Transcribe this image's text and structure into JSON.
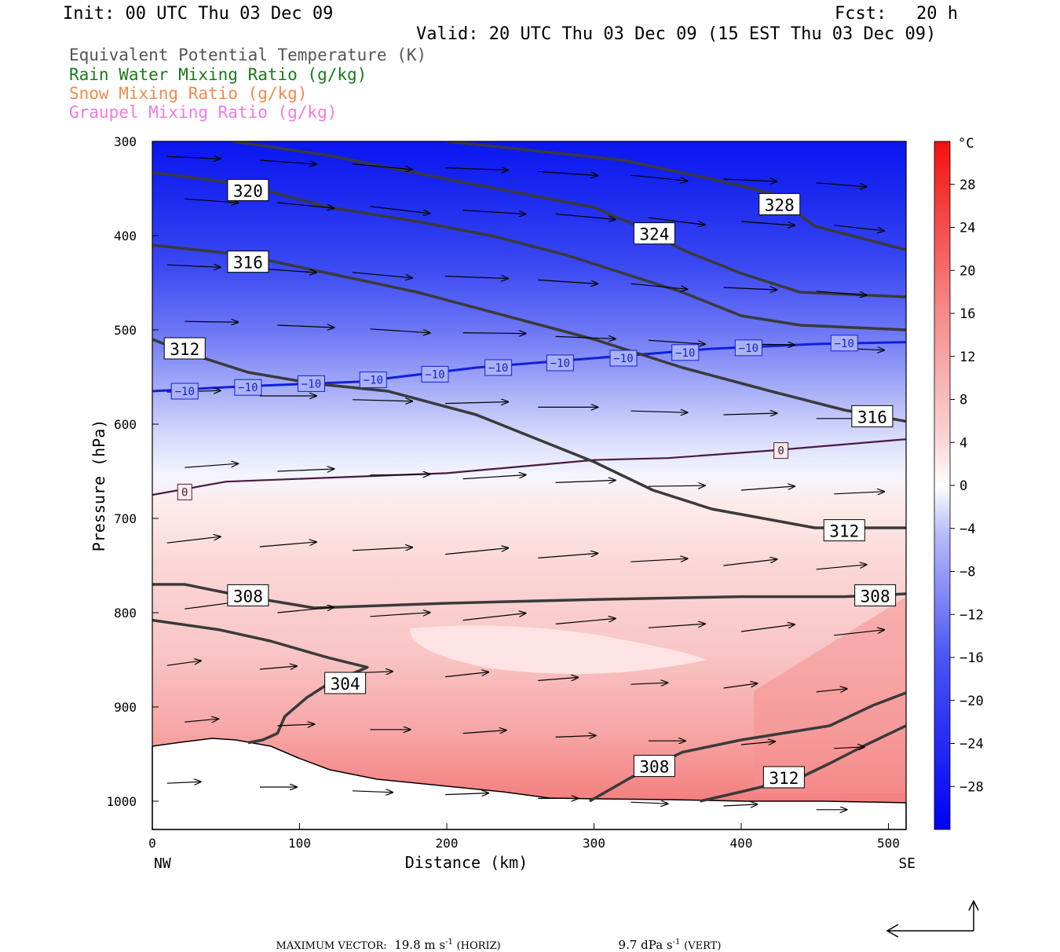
{
  "header": {
    "init": "Init: 00 UTC Thu 03 Dec 09",
    "fcst_label": "Fcst:",
    "fcst_value": "20 h",
    "valid": "Valid: 20 UTC Thu 03 Dec 09 (15 EST Thu 03 Dec 09)"
  },
  "fields": [
    {
      "label": "Equivalent Potential Temperature (K)",
      "color": "#555555"
    },
    {
      "label": "Rain Water Mixing Ratio (g/kg)",
      "color": "#1a7a1a"
    },
    {
      "label": "Snow Mixing Ratio (g/kg)",
      "color": "#f08a4b"
    },
    {
      "label": "Graupel Mixing Ratio (g/kg)",
      "color": "#f07ae0"
    }
  ],
  "footer": {
    "max_vector_label": "MAXIMUM VECTOR:",
    "horiz": "19.8 m s",
    "horiz_exp": "-1",
    "horiz_tag": "(HORIZ)",
    "vert": "9.7 dPa s",
    "vert_exp": "-1",
    "vert_tag": "(VERT)"
  },
  "chart_data": {
    "type": "cross-section contour",
    "xlabel": "Distance (km)",
    "ylabel": "Pressure (hPa)",
    "x_ticks": [
      0,
      100,
      200,
      300,
      400,
      500
    ],
    "y_ticks": [
      300,
      400,
      500,
      600,
      700,
      800,
      900,
      1000
    ],
    "xlim": [
      0,
      512
    ],
    "ylim": [
      1030,
      300
    ],
    "x_end_labels": {
      "left": "NW",
      "right": "SE"
    },
    "colorbar": {
      "unit": "°C",
      "ticks": [
        28,
        24,
        20,
        16,
        12,
        8,
        4,
        0,
        -4,
        -8,
        -12,
        -16,
        -20,
        -24,
        -28
      ],
      "range": [
        -32,
        32
      ]
    },
    "temperature_isotherms": [
      {
        "value": -10,
        "points": [
          [
            0,
            565
          ],
          [
            60,
            560
          ],
          [
            140,
            555
          ],
          [
            220,
            540
          ],
          [
            300,
            530
          ],
          [
            380,
            520
          ],
          [
            450,
            515
          ],
          [
            512,
            513
          ]
        ],
        "labels": [
          [
            22,
            565
          ],
          [
            65,
            561
          ],
          [
            108,
            557
          ],
          [
            150,
            553
          ],
          [
            192,
            547
          ],
          [
            235,
            540
          ],
          [
            277,
            535
          ],
          [
            320,
            530
          ],
          [
            362,
            524
          ],
          [
            405,
            519
          ],
          [
            470,
            514
          ]
        ]
      },
      {
        "value": 0,
        "points": [
          [
            0,
            675
          ],
          [
            50,
            661
          ],
          [
            150,
            655
          ],
          [
            200,
            652
          ],
          [
            250,
            645
          ],
          [
            300,
            638
          ],
          [
            350,
            636
          ],
          [
            420,
            628
          ],
          [
            512,
            616
          ]
        ],
        "labels": [
          [
            22,
            672
          ],
          [
            427,
            628
          ]
        ]
      }
    ],
    "theta_e_contours": [
      {
        "value": 304,
        "points": [
          [
            0,
            808
          ],
          [
            45,
            818
          ],
          [
            80,
            830
          ],
          [
            120,
            848
          ],
          [
            146,
            858
          ],
          [
            120,
            875
          ],
          [
            105,
            890
          ],
          [
            90,
            910
          ],
          [
            85,
            928
          ],
          [
            75,
            935
          ],
          [
            65,
            938
          ]
        ],
        "labels": [
          [
            131,
            875
          ]
        ]
      },
      {
        "value": 308,
        "points": [
          [
            0,
            770
          ],
          [
            22,
            770
          ],
          [
            60,
            782
          ],
          [
            110,
            795
          ],
          [
            200,
            790
          ],
          [
            300,
            786
          ],
          [
            400,
            783
          ],
          [
            470,
            783
          ],
          [
            512,
            780
          ]
        ],
        "labels": [
          [
            65,
            782
          ],
          [
            491,
            782
          ]
        ]
      },
      {
        "value": 308,
        "points": [
          [
            297,
            1000
          ],
          [
            325,
            975
          ],
          [
            360,
            948
          ],
          [
            400,
            935
          ],
          [
            460,
            920
          ],
          [
            490,
            898
          ],
          [
            512,
            885
          ]
        ],
        "labels": [
          [
            341,
            963
          ]
        ]
      },
      {
        "value": 312,
        "points": [
          [
            0,
            510
          ],
          [
            25,
            525
          ],
          [
            65,
            545
          ],
          [
            110,
            557
          ],
          [
            160,
            565
          ],
          [
            220,
            590
          ],
          [
            260,
            615
          ],
          [
            300,
            640
          ],
          [
            340,
            670
          ],
          [
            380,
            690
          ],
          [
            450,
            710
          ],
          [
            512,
            710
          ]
        ],
        "labels": [
          [
            22,
            520
          ],
          [
            470,
            713
          ]
        ]
      },
      {
        "value": 312,
        "points": [
          [
            372,
            1000
          ],
          [
            400,
            990
          ],
          [
            440,
            975
          ],
          [
            460,
            960
          ],
          [
            485,
            940
          ],
          [
            512,
            920
          ]
        ],
        "labels": [
          [
            429,
            975
          ]
        ]
      },
      {
        "value": 316,
        "points": [
          [
            0,
            410
          ],
          [
            60,
            420
          ],
          [
            120,
            440
          ],
          [
            180,
            460
          ],
          [
            240,
            485
          ],
          [
            300,
            510
          ],
          [
            360,
            540
          ],
          [
            420,
            565
          ],
          [
            470,
            585
          ],
          [
            512,
            597
          ]
        ],
        "labels": [
          [
            65,
            428
          ],
          [
            489,
            592
          ]
        ]
      },
      {
        "value": 320,
        "points": [
          [
            0,
            333
          ],
          [
            60,
            345
          ],
          [
            120,
            370
          ],
          [
            180,
            385
          ],
          [
            230,
            400
          ],
          [
            280,
            420
          ],
          [
            320,
            440
          ],
          [
            360,
            460
          ],
          [
            400,
            485
          ],
          [
            440,
            495
          ],
          [
            512,
            500
          ]
        ],
        "labels": [
          [
            65,
            352
          ]
        ]
      },
      {
        "value": 324,
        "points": [
          [
            55,
            300
          ],
          [
            120,
            315
          ],
          [
            200,
            340
          ],
          [
            300,
            370
          ],
          [
            330,
            390
          ],
          [
            360,
            415
          ],
          [
            400,
            440
          ],
          [
            440,
            460
          ],
          [
            512,
            465
          ]
        ],
        "labels": [
          [
            341,
            398
          ]
        ]
      },
      {
        "value": 328,
        "points": [
          [
            200,
            300
          ],
          [
            320,
            320
          ],
          [
            380,
            340
          ],
          [
            420,
            355
          ],
          [
            450,
            390
          ],
          [
            512,
            415
          ]
        ],
        "labels": [
          [
            426,
            367
          ]
        ]
      }
    ],
    "wind_vectors": {
      "max_horizontal": 19.8,
      "max_vertical": 9.7,
      "note": "arrows plotted along the section; orientation mostly eastward with upward/downward components"
    }
  }
}
